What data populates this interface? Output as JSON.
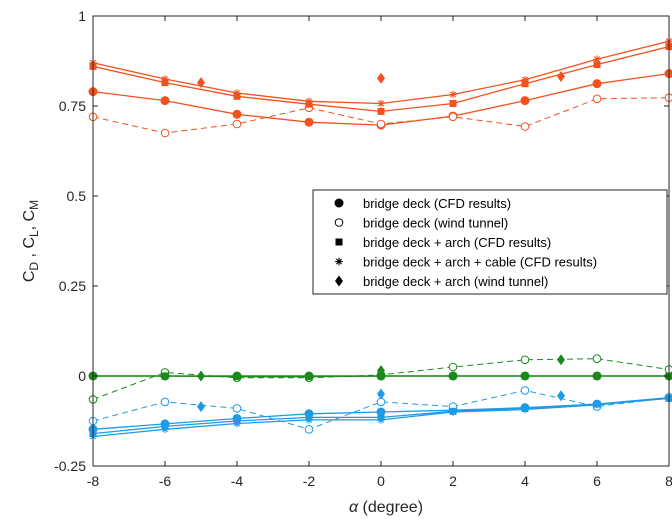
{
  "chart_data": {
    "type": "line",
    "xlabel_symbol": "α",
    "xlabel_text": " (degree)",
    "ylabel_parts": [
      {
        "t": "C",
        "sub": false
      },
      {
        "t": "D",
        "sub": true
      },
      {
        "t": " , C",
        "sub": false
      },
      {
        "t": "L",
        "sub": true
      },
      {
        "t": ", C",
        "sub": false
      },
      {
        "t": "M",
        "sub": true
      }
    ],
    "xlim": [
      -8,
      8
    ],
    "ylim": [
      -0.25,
      1
    ],
    "xticks": [
      -8,
      -6,
      -4,
      -2,
      0,
      2,
      4,
      6,
      8
    ],
    "xtick_labels": [
      "-8",
      "-6",
      "-4",
      "-2",
      "0",
      "2",
      "4",
      "6",
      "8"
    ],
    "yticks": [
      -0.25,
      0,
      0.25,
      0.5,
      0.75,
      1
    ],
    "ytick_labels": [
      "-0.25",
      "0",
      "0.25",
      "0.5",
      "0.75",
      "1"
    ],
    "grid": false,
    "legend_position": "center-right",
    "legend": [
      {
        "label": "bridge deck (CFD results)",
        "marker": "dot"
      },
      {
        "label": "bridge deck (wind tunnel)",
        "marker": "circle"
      },
      {
        "label": "bridge deck + arch (CFD results)",
        "marker": "square"
      },
      {
        "label": "bridge deck + arch + cable (CFD results)",
        "marker": "asterisk"
      },
      {
        "label": "bridge deck + arch (wind tunnel)",
        "marker": "diamond"
      }
    ],
    "colors": {
      "drag": "#f4511e",
      "moment": "#1a8a1a",
      "lift": "#1e9be6"
    },
    "series": [
      {
        "group": "drag",
        "marker": "dot",
        "line": "solid",
        "x": [
          -8,
          -6,
          -4,
          -2,
          0,
          2,
          4,
          6,
          8
        ],
        "y": [
          0.79,
          0.765,
          0.727,
          0.705,
          0.697,
          0.722,
          0.765,
          0.812,
          0.84
        ]
      },
      {
        "group": "drag",
        "marker": "circle",
        "line": "dashed",
        "x": [
          -8,
          -6,
          -4,
          -2,
          0,
          2,
          4,
          6,
          8
        ],
        "y": [
          0.72,
          0.675,
          0.7,
          0.745,
          0.7,
          0.72,
          0.693,
          0.77,
          0.773
        ]
      },
      {
        "group": "drag",
        "marker": "square",
        "line": "solid",
        "x": [
          -8,
          -6,
          -4,
          -2,
          0,
          2,
          4,
          6,
          8
        ],
        "y": [
          0.86,
          0.815,
          0.777,
          0.755,
          0.735,
          0.757,
          0.812,
          0.865,
          0.915
        ]
      },
      {
        "group": "drag",
        "marker": "asterisk",
        "line": "solid",
        "x": [
          -8,
          -6,
          -4,
          -2,
          0,
          2,
          4,
          6,
          8
        ],
        "y": [
          0.87,
          0.825,
          0.786,
          0.763,
          0.757,
          0.782,
          0.823,
          0.88,
          0.93
        ]
      },
      {
        "group": "drag",
        "marker": "diamond",
        "line": "none",
        "x": [
          -5,
          0,
          5
        ],
        "y": [
          0.815,
          0.827,
          0.832
        ]
      },
      {
        "group": "moment",
        "marker": "dot",
        "line": "solid",
        "x": [
          -8,
          -6,
          -4,
          -2,
          0,
          2,
          4,
          6,
          8
        ],
        "y": [
          0,
          0,
          0,
          0,
          0,
          0,
          0,
          0,
          0
        ]
      },
      {
        "group": "moment",
        "marker": "circle",
        "line": "dashed",
        "x": [
          -8,
          -6,
          -4,
          -2,
          0,
          2,
          4,
          6,
          8
        ],
        "y": [
          -0.065,
          0.01,
          -0.005,
          -0.005,
          0.003,
          0.025,
          0.045,
          0.048,
          0.018
        ]
      },
      {
        "group": "moment",
        "marker": "square",
        "line": "solid",
        "x": [
          -8,
          -6,
          -4,
          -2,
          0,
          2,
          4,
          6,
          8
        ],
        "y": [
          0,
          0,
          -0.002,
          -0.002,
          0,
          0,
          0,
          0,
          0
        ]
      },
      {
        "group": "moment",
        "marker": "asterisk",
        "line": "solid",
        "x": [
          -8,
          -6,
          -4,
          -2,
          0,
          2,
          4,
          6,
          8
        ],
        "y": [
          0,
          0,
          0,
          0,
          0,
          0,
          0,
          0,
          0
        ]
      },
      {
        "group": "moment",
        "marker": "diamond",
        "line": "none",
        "x": [
          -5,
          0,
          5
        ],
        "y": [
          0.0,
          0.015,
          0.045
        ]
      },
      {
        "group": "lift",
        "marker": "dot",
        "line": "solid",
        "x": [
          -8,
          -6,
          -4,
          -2,
          0,
          2,
          4,
          6,
          8
        ],
        "y": [
          -0.148,
          -0.133,
          -0.118,
          -0.105,
          -0.1,
          -0.095,
          -0.088,
          -0.078,
          -0.06
        ]
      },
      {
        "group": "lift",
        "marker": "circle",
        "line": "dashed",
        "x": [
          -8,
          -6,
          -4,
          -2,
          0,
          2,
          4,
          6,
          8
        ],
        "y": [
          -0.125,
          -0.072,
          -0.09,
          -0.148,
          -0.072,
          -0.085,
          -0.04,
          -0.085,
          -0.06
        ]
      },
      {
        "group": "lift",
        "marker": "square",
        "line": "solid",
        "x": [
          -8,
          -6,
          -4,
          -2,
          0,
          2,
          4,
          6,
          8
        ],
        "y": [
          -0.16,
          -0.14,
          -0.125,
          -0.115,
          -0.115,
          -0.098,
          -0.09,
          -0.078,
          -0.062
        ]
      },
      {
        "group": "lift",
        "marker": "asterisk",
        "line": "solid",
        "x": [
          -8,
          -6,
          -4,
          -2,
          0,
          2,
          4,
          6,
          8
        ],
        "y": [
          -0.168,
          -0.148,
          -0.132,
          -0.122,
          -0.122,
          -0.1,
          -0.093,
          -0.08,
          -0.062
        ]
      },
      {
        "group": "lift",
        "marker": "diamond",
        "line": "none",
        "x": [
          -5,
          0,
          5
        ],
        "y": [
          -0.085,
          -0.05,
          -0.055
        ]
      }
    ]
  }
}
